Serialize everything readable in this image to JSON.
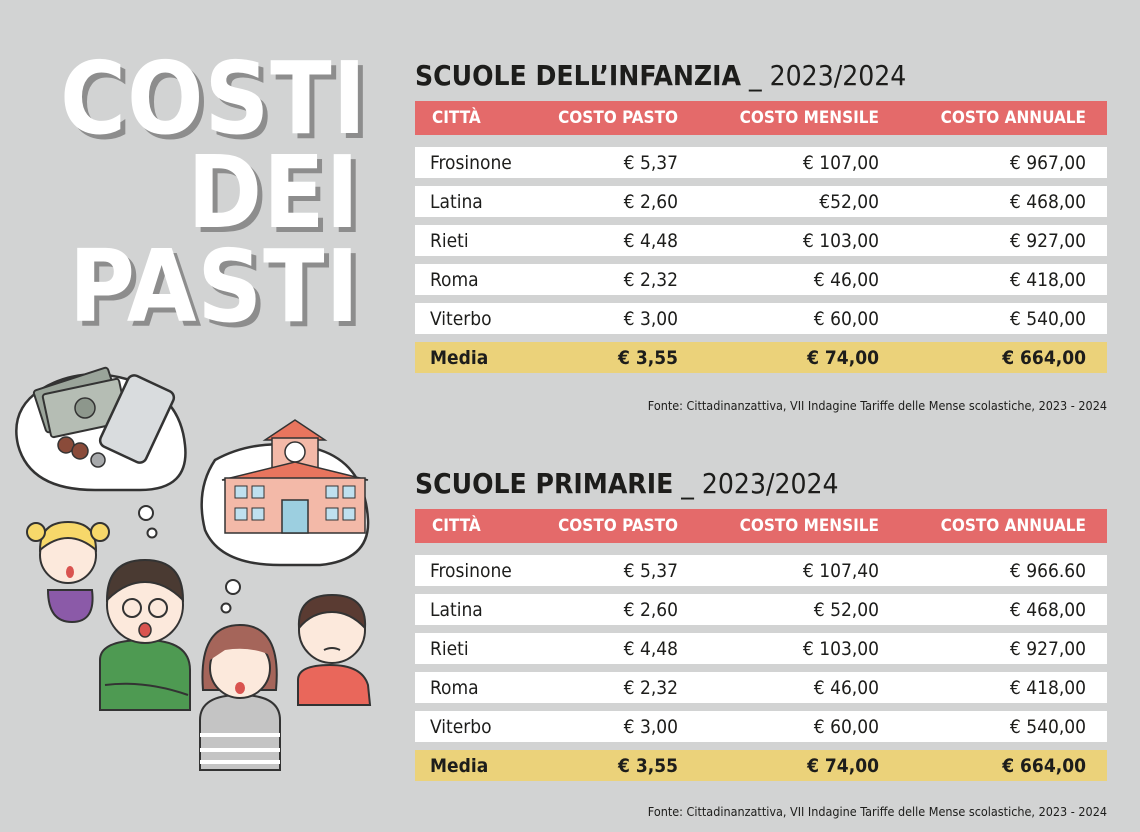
{
  "headline": [
    "COSTI",
    "DEI",
    "PASTI"
  ],
  "columns": [
    "CITTÀ",
    "COSTO PASTO",
    "COSTO MENSILE",
    "COSTO ANNUALE"
  ],
  "tables": [
    {
      "title": "SCUOLE DELL’INFANZIA",
      "year": "_ 2023/2024",
      "rows": [
        [
          "Frosinone",
          "€ 5,37",
          "€ 107,00",
          "€ 967,00"
        ],
        [
          "Latina",
          "€ 2,60",
          "€52,00",
          "€ 468,00"
        ],
        [
          "Rieti",
          "€ 4,48",
          "€ 103,00",
          "€ 927,00"
        ],
        [
          "Roma",
          "€ 2,32",
          "€ 46,00",
          "€ 418,00"
        ],
        [
          "Viterbo",
          "€ 3,00",
          "€ 60,00",
          "€ 540,00"
        ]
      ],
      "average": [
        "Media",
        "€ 3,55",
        "€ 74,00",
        "€ 664,00"
      ],
      "source": "Fonte: Cittadinanzattiva, VII Indagine Tariffe delle Mense scolastiche, 2023 - 2024"
    },
    {
      "title": "SCUOLE PRIMARIE",
      "year": "_ 2023/2024",
      "rows": [
        [
          "Frosinone",
          "€ 5,37",
          "€ 107,40",
          "€ 966.60"
        ],
        [
          "Latina",
          "€ 2,60",
          "€ 52,00",
          "€ 468,00"
        ],
        [
          "Rieti",
          "€ 4,48",
          "€ 103,00",
          "€ 927,00"
        ],
        [
          "Roma",
          "€ 2,32",
          "€ 46,00",
          "€ 418,00"
        ],
        [
          "Viterbo",
          "€ 3,00",
          "€ 60,00",
          "€ 540,00"
        ]
      ],
      "average": [
        "Media",
        "€ 3,55",
        "€ 74,00",
        "€ 664,00"
      ],
      "source": "Fonte: Cittadinanzattiva, VII Indagine Tariffe delle Mense scolastiche, 2023 - 2024"
    }
  ],
  "colors": {
    "background": "#d2d3d3",
    "header": "#e46a6a",
    "average_row": "#ebd27a"
  },
  "illustration_icons": [
    "money-thought-bubble-icon",
    "school-thought-bubble-icon",
    "worried-family-icon"
  ]
}
